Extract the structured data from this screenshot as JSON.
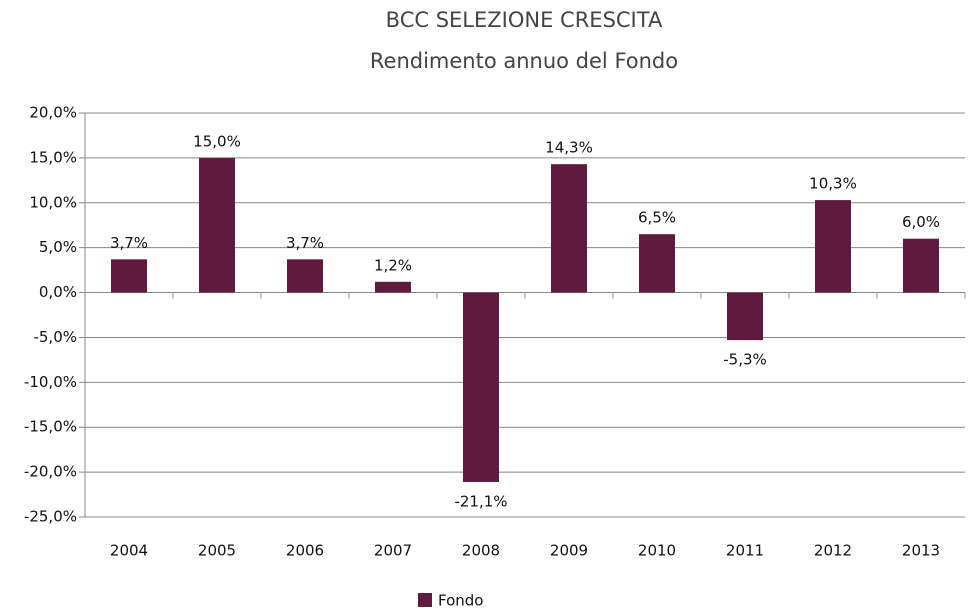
{
  "chart_data": {
    "type": "bar",
    "title": "BCC SELEZIONE CRESCITA",
    "subtitle": "Rendimento annuo del Fondo",
    "categories": [
      "2004",
      "2005",
      "2006",
      "2007",
      "2008",
      "2009",
      "2010",
      "2011",
      "2012",
      "2013"
    ],
    "series": [
      {
        "name": "Fondo",
        "color": "#5e1b3d",
        "values": [
          3.7,
          15.0,
          3.7,
          1.2,
          -21.1,
          14.3,
          6.5,
          -5.3,
          10.3,
          6.0
        ],
        "value_labels": [
          "3,7%",
          "15,0%",
          "3,7%",
          "1,2%",
          "-21,1%",
          "14,3%",
          "6,5%",
          "-5,3%",
          "10,3%",
          "6,0%"
        ]
      }
    ],
    "ylim": [
      -25,
      20
    ],
    "yticks": [
      {
        "value": -25,
        "label": "-25,0%"
      },
      {
        "value": -20,
        "label": "-20,0%"
      },
      {
        "value": -15,
        "label": "-15,0%"
      },
      {
        "value": -10,
        "label": "-10,0%"
      },
      {
        "value": -5,
        "label": "-5,0%"
      },
      {
        "value": 0,
        "label": "0,0%"
      },
      {
        "value": 5,
        "label": "5,0%"
      },
      {
        "value": 10,
        "label": "10,0%"
      },
      {
        "value": 15,
        "label": "15,0%"
      },
      {
        "value": 20,
        "label": "20,0%"
      }
    ],
    "grid": true,
    "legend": "bottom"
  }
}
